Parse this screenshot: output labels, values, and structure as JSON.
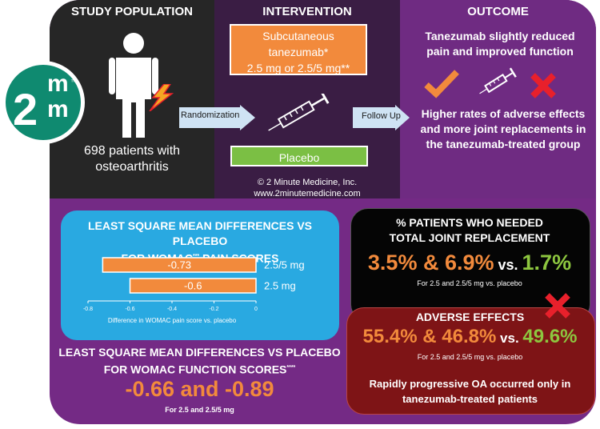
{
  "logo": {
    "top": "m",
    "bottom_left": "2",
    "bottom_right": "m",
    "tm": "™"
  },
  "population": {
    "header": "STUDY POPULATION",
    "text": "698 patients with osteoarthritis"
  },
  "intervention": {
    "header": "INTERVENTION",
    "drug_line1": "Subcutaneous",
    "drug_line2": "tanezumab*",
    "drug_line3": "2.5 mg or 2.5/5 mg**",
    "randomization": "Randomization",
    "placebo": "Placebo",
    "credit": "© 2 Minute Medicine, Inc.",
    "website": "www.2minutemedicine.com"
  },
  "outcome": {
    "header": "OUTCOME",
    "primary": "Tanezumab slightly reduced pain and improved function",
    "follow_up": "Follow Up",
    "secondary": "Higher rates of adverse effects and more joint replacements in the tanezumab-treated group"
  },
  "pain_panel": {
    "title_line1": "LEAST SQUARE MEAN DIFFERENCES VS PLACEBO",
    "title_line2_main": "FOR WOMAC",
    "title_line2_sup": "***",
    "title_line2_end": " PAIN SCORES"
  },
  "chart_data": {
    "type": "bar",
    "orientation": "horizontal",
    "categories": [
      "2.5/5 mg",
      "2.5 mg"
    ],
    "values": [
      -0.73,
      -0.6
    ],
    "value_labels": [
      "-0.73",
      "-0.6"
    ],
    "xlim": [
      -0.8,
      0
    ],
    "xticks": [
      "-0.8",
      "-0.6",
      "-0.4",
      "-0.2",
      "0"
    ],
    "xlabel": "Difference in WOMAC pain score vs. placebo",
    "bar_color": "#f28a3c"
  },
  "function_panel": {
    "title_line1": "LEAST SQUARE MEAN DIFFERENCES VS PLACEBO",
    "title_line2": "FOR WOMAC FUNCTION SCORES",
    "title_sup": "****",
    "value": "-0.66 and -0.89",
    "note": "For 2.5 and 2.5/5 mg"
  },
  "joint_panel": {
    "title_line1": "% PATIENTS WHO NEEDED",
    "title_line2": "TOTAL JOINT REPLACEMENT",
    "value_main": "3.5% & 6.9%",
    "vs": " vs. ",
    "value_placebo": "1.7%",
    "note": "For 2.5 and 2.5/5 mg vs. placebo"
  },
  "adverse_panel": {
    "title": "ADVERSE EFFECTS",
    "value_main": "55.4% & 46.8%",
    "vs": " vs. ",
    "value_placebo": "49.6%",
    "note": "For 2.5 and 2.5/5 mg vs. placebo",
    "footer": "Rapidly progressive OA occurred only in tanezumab-treated patients"
  },
  "colors": {
    "orange": "#f28a3c",
    "green": "#8dc63f",
    "purple": "#742a85",
    "teal": "#0f8a70",
    "red": "#e8202b",
    "sky": "#29a9e1",
    "dark_red": "#7e1416"
  },
  "icons": [
    "person-icon",
    "pain-bolt-icon",
    "syringe-icon",
    "checkmark-icon",
    "x-mark-icon",
    "arrow-icon"
  ]
}
